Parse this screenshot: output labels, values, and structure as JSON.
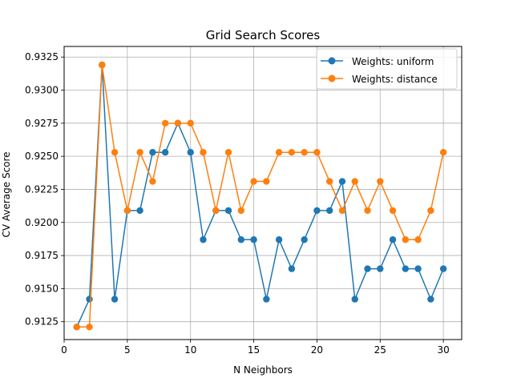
{
  "chart_data": {
    "type": "line",
    "title": "Grid Search Scores",
    "xlabel": "N Neighbors",
    "ylabel": "CV Average Score",
    "xlim": [
      0,
      31.45
    ],
    "ylim": [
      0.91115,
      0.9333
    ],
    "xticks": [
      0,
      5,
      10,
      15,
      20,
      25,
      30
    ],
    "xtick_labels": [
      "0",
      "5",
      "10",
      "15",
      "20",
      "25",
      "30"
    ],
    "yticks": [
      0.9125,
      0.915,
      0.9175,
      0.92,
      0.9225,
      0.925,
      0.9275,
      0.93,
      0.9325
    ],
    "ytick_labels": [
      "0.9125",
      "0.9150",
      "0.9175",
      "0.9200",
      "0.9225",
      "0.9250",
      "0.9275",
      "0.9300",
      "0.9325"
    ],
    "grid": true,
    "legend_position": "top-right",
    "x": [
      1,
      2,
      3,
      4,
      5,
      6,
      7,
      8,
      9,
      10,
      11,
      12,
      13,
      14,
      15,
      16,
      17,
      18,
      19,
      20,
      21,
      22,
      23,
      24,
      25,
      26,
      27,
      28,
      29,
      30
    ],
    "series": [
      {
        "name": "Weights: uniform",
        "color": "#1f77b4",
        "marker": "circle",
        "values": [
          0.9121,
          0.9142,
          0.9319,
          0.9142,
          0.9209,
          0.9209,
          0.9253,
          0.9253,
          0.9275,
          0.9253,
          0.9187,
          0.9209,
          0.9209,
          0.9187,
          0.9187,
          0.9142,
          0.9187,
          0.9165,
          0.9187,
          0.9209,
          0.9209,
          0.9231,
          0.9142,
          0.9165,
          0.9165,
          0.9187,
          0.9165,
          0.9165,
          0.9142,
          0.9165
        ]
      },
      {
        "name": "Weights: distance",
        "color": "#ff7f0e",
        "marker": "circle",
        "values": [
          0.9121,
          0.9121,
          0.9319,
          0.9253,
          0.9209,
          0.9253,
          0.9231,
          0.9275,
          0.9275,
          0.9275,
          0.9253,
          0.9209,
          0.9253,
          0.9209,
          0.9231,
          0.9231,
          0.9253,
          0.9253,
          0.9253,
          0.9253,
          0.9231,
          0.9209,
          0.9231,
          0.9209,
          0.9231,
          0.9209,
          0.9187,
          0.9187,
          0.9209,
          0.9253
        ]
      }
    ]
  }
}
